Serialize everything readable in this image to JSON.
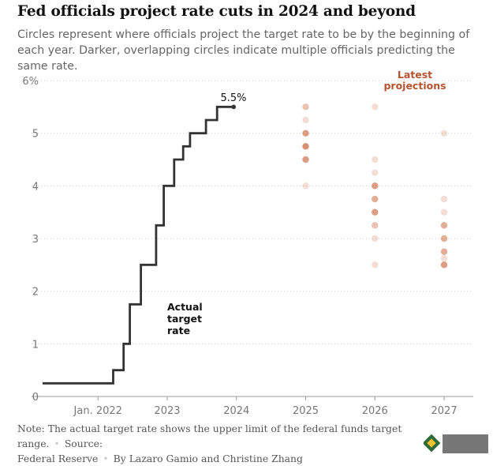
{
  "header": {
    "title": "Fed officials project rate cuts in 2024 and beyond",
    "subtitle": "Circles represent where officials project the target rate to be by the beginning of each year. Darker, overlapping circles indicate multiple officials predicting the same rate."
  },
  "chart_data": {
    "type": "line",
    "ylim": [
      0,
      6
    ],
    "yticks": [
      0,
      1,
      2,
      3,
      4,
      5,
      6
    ],
    "ytick_labels": [
      "0",
      "1",
      "2",
      "3",
      "4",
      "5",
      "6%"
    ],
    "x_ticks": [
      {
        "label": "Jan. 2022",
        "year": 2022.0
      },
      {
        "label": "2023",
        "year": 2023.0
      },
      {
        "label": "2024",
        "year": 2024.0
      },
      {
        "label": "2025",
        "year": 2025.0
      },
      {
        "label": "2026",
        "year": 2026.0
      },
      {
        "label": "2027",
        "year": 2027.0
      }
    ],
    "actual_rate": {
      "label": "Actual target rate",
      "end_label": "5.5%",
      "steps": [
        [
          2021.2,
          0.25
        ],
        [
          2022.22,
          0.5
        ],
        [
          2022.37,
          1.0
        ],
        [
          2022.46,
          1.75
        ],
        [
          2022.62,
          2.5
        ],
        [
          2022.84,
          3.25
        ],
        [
          2022.95,
          4.0
        ],
        [
          2023.1,
          4.5
        ],
        [
          2023.23,
          4.75
        ],
        [
          2023.33,
          5.0
        ],
        [
          2023.56,
          5.25
        ],
        [
          2023.72,
          5.5
        ],
        [
          2023.96,
          5.5
        ]
      ]
    },
    "projections": {
      "label": "Latest projections",
      "groups": [
        {
          "year": 2025.0,
          "points": [
            {
              "rate": 5.5,
              "count": 2
            },
            {
              "rate": 5.25,
              "count": 1
            },
            {
              "rate": 5.0,
              "count": 4
            },
            {
              "rate": 4.75,
              "count": 5
            },
            {
              "rate": 4.5,
              "count": 4
            },
            {
              "rate": 4.0,
              "count": 1
            }
          ]
        },
        {
          "year": 2026.0,
          "points": [
            {
              "rate": 5.5,
              "count": 1
            },
            {
              "rate": 4.5,
              "count": 1
            },
            {
              "rate": 4.25,
              "count": 1
            },
            {
              "rate": 4.0,
              "count": 4
            },
            {
              "rate": 3.75,
              "count": 3
            },
            {
              "rate": 3.5,
              "count": 4
            },
            {
              "rate": 3.25,
              "count": 2
            },
            {
              "rate": 3.0,
              "count": 1
            },
            {
              "rate": 2.5,
              "count": 1
            }
          ]
        },
        {
          "year": 2027.0,
          "points": [
            {
              "rate": 5.0,
              "count": 1
            },
            {
              "rate": 3.75,
              "count": 1
            },
            {
              "rate": 3.5,
              "count": 1
            },
            {
              "rate": 3.25,
              "count": 3
            },
            {
              "rate": 3.0,
              "count": 3
            },
            {
              "rate": 2.75,
              "count": 3
            },
            {
              "rate": 2.625,
              "count": 1
            },
            {
              "rate": 2.5,
              "count": 4
            }
          ]
        }
      ]
    },
    "colors": {
      "line": "#333333",
      "dot": "#c9643a",
      "projection_label": "#b5532f",
      "grid": "#cccccc"
    }
  },
  "footer": {
    "note": "Note: The actual target rate shows the upper limit of the federal funds target range.",
    "source_label": "Source:",
    "source": "Federal Reserve",
    "byline": "By Lazaro Gamio and Christine Zhang"
  }
}
